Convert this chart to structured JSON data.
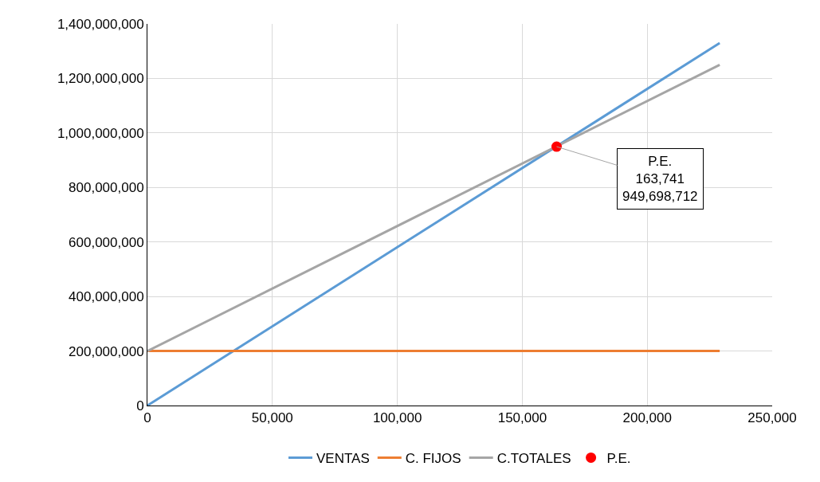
{
  "chart_data": {
    "type": "line",
    "series": [
      {
        "name": "VENTAS",
        "color": "#5b9bd5",
        "x": [
          0,
          229000
        ],
        "values": [
          0,
          1330000000
        ]
      },
      {
        "name": "C. FIJOS",
        "color": "#ed7d31",
        "x": [
          0,
          229000
        ],
        "values": [
          200000000,
          200000000
        ]
      },
      {
        "name": "C.TOTALES",
        "color": "#a5a5a5",
        "x": [
          0,
          229000
        ],
        "values": [
          200000000,
          1250000000
        ]
      },
      {
        "name": "P.E.",
        "type": "scatter",
        "color": "#ff0000",
        "marker": "circle",
        "x": [
          163741
        ],
        "values": [
          949698712
        ]
      }
    ],
    "annotations": [
      {
        "text": "P.E.\n163,741\n949,698,712",
        "x": 163741,
        "y": 949698712
      }
    ],
    "xlim": [
      0,
      250000
    ],
    "xticks": [
      {
        "value": 0,
        "label": "0"
      },
      {
        "value": 50000,
        "label": "50,000"
      },
      {
        "value": 100000,
        "label": "100,000"
      },
      {
        "value": 150000,
        "label": "150,000"
      },
      {
        "value": 200000,
        "label": "200,000"
      },
      {
        "value": 250000,
        "label": "250,000"
      }
    ],
    "ylim": [
      0,
      1400000000
    ],
    "yticks": [
      {
        "value": 0,
        "label": "0"
      },
      {
        "value": 200000000,
        "label": "200,000,000"
      },
      {
        "value": 400000000,
        "label": "400,000,000"
      },
      {
        "value": 600000000,
        "label": "600,000,000"
      },
      {
        "value": 800000000,
        "label": "800,000,000"
      },
      {
        "value": 1000000000,
        "label": "1,000,000,000"
      },
      {
        "value": 1200000000,
        "label": "1,200,000,000"
      },
      {
        "value": 1400000000,
        "label": "1,400,000,000"
      }
    ],
    "grid": true,
    "legend": "bottom",
    "marker": "none",
    "line_style": "solid"
  }
}
